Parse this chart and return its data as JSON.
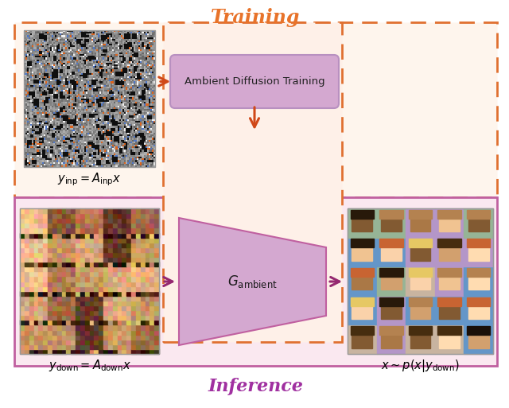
{
  "title_training": "Training",
  "title_inference": "Inference",
  "label_ambient_box": "Ambient Diffusion Training",
  "label_g_ambient": "$G_{\\mathrm{ambient}}$",
  "label_y_inp": "$y_{\\mathrm{inp}} = A_{\\mathrm{inp}}x$",
  "label_y_down": "$y_{\\mathrm{down}} = A_{\\mathrm{down}}x$",
  "label_x_sim": "$x \\sim p(x|y_{\\mathrm{down}})$",
  "color_training_title": "#E8732A",
  "color_inference_title": "#A030A0",
  "color_orange_dashed": "#E07030",
  "color_purple_solid": "#C060A0",
  "color_training_bg": "#FEF5ED",
  "color_inference_bg": "#FAE8F0",
  "color_ambient_box_bg": "#D4A8D0",
  "color_inner_dashed_bg": "#FEF0E8",
  "color_arrow_orange": "#D04818",
  "color_arrow_purple": "#952870",
  "fig_bg": "#FFFFFF"
}
